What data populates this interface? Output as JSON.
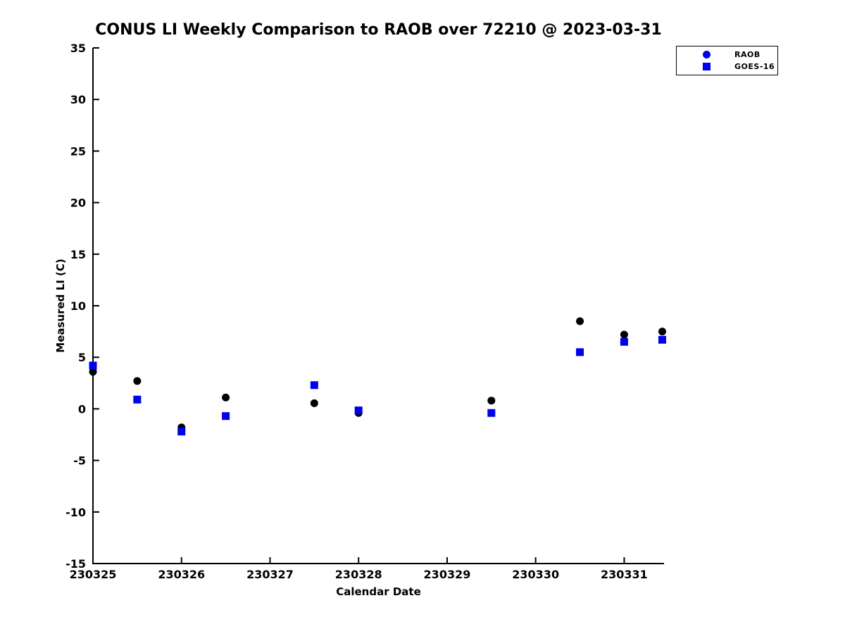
{
  "figure": {
    "background": "#ffffff"
  },
  "chart_data": {
    "type": "scatter",
    "title": "CONUS LI Weekly Comparison to RAOB over 72210 @ 2023-03-31",
    "xlabel": "Calendar Date",
    "ylabel": "Measured LI (C)",
    "x_tick_labels": [
      "230325",
      "230326",
      "230327",
      "230328",
      "230329",
      "230330",
      "230331"
    ],
    "x_tick_days": [
      0,
      1,
      2,
      3,
      4,
      5,
      6
    ],
    "xlim_days": [
      0,
      6.45
    ],
    "ylim": [
      -15,
      35
    ],
    "y_ticks": [
      -15,
      -10,
      -5,
      0,
      5,
      10,
      15,
      20,
      25,
      30,
      35
    ],
    "grid": false,
    "legend_position": "top-right",
    "axis_color": "#000000",
    "series": [
      {
        "name": "RAOB",
        "marker": "circle",
        "data_color": "#000000",
        "legend_color": "#0000ee",
        "x_days": [
          0,
          0.5,
          1,
          1.5,
          2.5,
          3,
          4.5,
          5.5,
          6,
          6.43
        ],
        "values": [
          3.6,
          2.7,
          -1.8,
          1.1,
          0.55,
          -0.4,
          0.8,
          8.5,
          7.2,
          7.5
        ]
      },
      {
        "name": "GOES-16",
        "marker": "square",
        "data_color": "#0000ee",
        "legend_color": "#0000ee",
        "x_days": [
          0,
          0.5,
          1,
          1.5,
          2.5,
          3,
          4.5,
          5.5,
          6,
          6.43
        ],
        "values": [
          4.2,
          0.9,
          -2.2,
          -0.7,
          2.3,
          -0.15,
          -0.4,
          5.5,
          6.5,
          6.7
        ]
      }
    ]
  }
}
